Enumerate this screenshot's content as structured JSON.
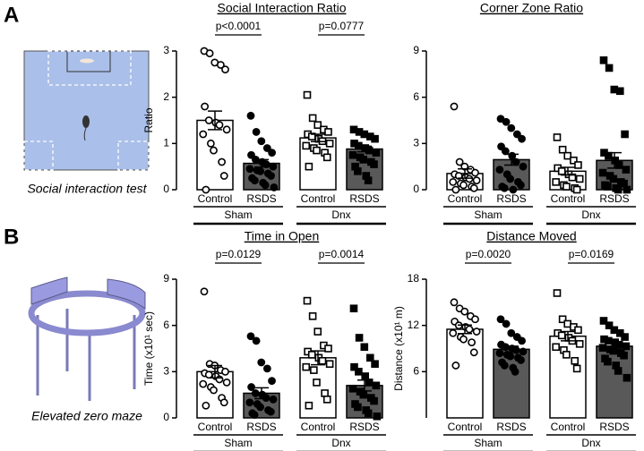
{
  "figure": {
    "panels": [
      "A",
      "B"
    ],
    "captions": [
      "Social interaction test",
      "Elevated zero maze"
    ]
  },
  "chart_data": [
    {
      "type": "bar",
      "title": "Social Interaction Ratio",
      "ylabel": "Ratio",
      "categories": [
        "Control",
        "RSDS",
        "Control",
        "RSDS"
      ],
      "groups": [
        "Sham",
        "Dnx"
      ],
      "values": [
        1.5,
        0.57,
        1.12,
        0.88
      ],
      "errors": [
        0.2,
        0.08,
        0.08,
        0.06
      ],
      "points": [
        [
          3.0,
          2.95,
          2.75,
          2.7,
          2.6,
          1.8,
          1.5,
          1.45,
          1.4,
          1.3,
          1.2,
          1.0,
          0.85,
          0.6,
          0.3,
          0.0
        ],
        [
          1.6,
          1.25,
          1.05,
          0.9,
          0.8,
          0.75,
          0.65,
          0.6,
          0.55,
          0.5,
          0.45,
          0.42,
          0.4,
          0.35,
          0.3,
          0.25,
          0.2,
          0.15,
          0.1,
          0.05
        ],
        [
          2.05,
          1.55,
          1.4,
          1.3,
          1.25,
          1.2,
          1.15,
          1.1,
          1.05,
          1.0,
          0.95,
          0.9,
          0.85,
          0.8,
          0.7,
          0.5
        ],
        [
          1.3,
          1.25,
          1.2,
          1.15,
          1.1,
          1.0,
          0.95,
          0.9,
          0.85,
          0.8,
          0.75,
          0.7,
          0.65,
          0.6,
          0.55,
          0.5,
          0.4,
          0.3,
          0.2
        ]
      ],
      "markers": [
        "circle",
        "circle",
        "square",
        "square"
      ],
      "colors": [
        "#ffffff",
        "#595959",
        "#ffffff",
        "#595959"
      ],
      "point_colors": [
        "#ffffff",
        "#000000",
        "#ffffff",
        "#000000"
      ],
      "annotations": [
        {
          "text": "p<0.0001",
          "color": "#c00000"
        },
        {
          "text": "p=0.0777",
          "color": "#000000"
        }
      ],
      "ylim": [
        0,
        3
      ],
      "yticks": [
        0,
        1,
        2,
        3
      ]
    },
    {
      "type": "bar",
      "title": "Corner Zone Ratio",
      "categories": [
        "Control",
        "RSDS",
        "Control",
        "RSDS"
      ],
      "groups": [
        "Sham",
        "Dnx"
      ],
      "values": [
        1.05,
        1.95,
        1.2,
        1.9
      ],
      "errors": [
        0.3,
        0.35,
        0.25,
        0.5
      ],
      "points": [
        [
          5.4,
          1.8,
          1.5,
          1.3,
          1.1,
          1.0,
          0.9,
          0.8,
          0.7,
          0.6,
          0.5,
          0.4,
          0.3,
          0.2,
          0.1,
          0.0
        ],
        [
          4.6,
          4.4,
          4.0,
          3.6,
          3.3,
          2.8,
          2.5,
          2.2,
          1.8,
          1.5,
          1.3,
          1.0,
          0.7,
          0.5,
          0.3,
          0.2,
          0.1,
          0.0
        ],
        [
          3.4,
          2.6,
          2.2,
          1.9,
          1.6,
          1.4,
          1.2,
          1.0,
          0.8,
          0.7,
          0.5,
          0.3,
          0.2,
          0.1,
          0.0
        ],
        [
          8.4,
          7.9,
          6.5,
          6.4,
          3.6,
          2.4,
          2.2,
          1.9,
          1.6,
          1.3,
          1.1,
          0.9,
          0.7,
          0.5,
          0.4,
          0.3,
          0.2,
          0.1,
          0.0,
          0.0
        ]
      ],
      "markers": [
        "circle",
        "circle",
        "square",
        "square"
      ],
      "colors": [
        "#ffffff",
        "#595959",
        "#ffffff",
        "#595959"
      ],
      "point_colors": [
        "#ffffff",
        "#000000",
        "#ffffff",
        "#000000"
      ],
      "ylim": [
        0,
        9
      ],
      "yticks": [
        0,
        3,
        6,
        9
      ]
    },
    {
      "type": "bar",
      "title": "Time in Open",
      "ylabel": "Time (x10¹ sec)",
      "categories": [
        "Control",
        "RSDS",
        "Control",
        "RSDS"
      ],
      "groups": [
        "Sham",
        "Dnx"
      ],
      "values": [
        3.0,
        1.6,
        3.9,
        2.1
      ],
      "errors": [
        0.4,
        0.35,
        0.45,
        0.35
      ],
      "points": [
        [
          8.2,
          3.5,
          3.4,
          3.1,
          3.0,
          2.9,
          2.8,
          2.7,
          2.5,
          2.3,
          2.2,
          2.0,
          1.8,
          1.3,
          1.0,
          0.8
        ],
        [
          5.3,
          5.0,
          3.6,
          3.2,
          2.4,
          2.0,
          1.6,
          1.5,
          1.3,
          1.2,
          1.0,
          0.9,
          0.7,
          0.5,
          0.4,
          0.3,
          0.2
        ],
        [
          7.6,
          6.6,
          5.6,
          4.7,
          4.5,
          4.3,
          4.1,
          3.9,
          3.7,
          3.5,
          3.3,
          3.1,
          2.3,
          1.6,
          1.2,
          0.8
        ],
        [
          7.1,
          5.2,
          4.6,
          3.9,
          3.5,
          3.3,
          3.0,
          2.7,
          2.3,
          2.1,
          1.9,
          1.7,
          1.5,
          1.3,
          1.1,
          0.9,
          0.7,
          0.5,
          0.3,
          0.1
        ]
      ],
      "markers": [
        "circle",
        "circle",
        "square",
        "square"
      ],
      "colors": [
        "#ffffff",
        "#595959",
        "#ffffff",
        "#595959"
      ],
      "point_colors": [
        "#ffffff",
        "#000000",
        "#ffffff",
        "#000000"
      ],
      "annotations": [
        {
          "text": "p=0.0129",
          "color": "#c00000"
        },
        {
          "text": "p=0.0014",
          "color": "#c00000"
        }
      ],
      "ylim": [
        0,
        9
      ],
      "yticks": [
        0,
        3,
        6,
        9
      ]
    },
    {
      "type": "bar",
      "title": "Distance Moved",
      "ylabel": "Distance (x10¹ m)",
      "categories": [
        "Control",
        "RSDS",
        "Control",
        "RSDS"
      ],
      "groups": [
        "Sham",
        "Dnx"
      ],
      "values": [
        11.5,
        8.9,
        10.6,
        9.3
      ],
      "errors": [
        0.55,
        0.4,
        0.6,
        0.4
      ],
      "points": [
        [
          15.0,
          14.2,
          13.8,
          13.2,
          12.8,
          12.5,
          12.0,
          11.8,
          11.5,
          11.2,
          11.0,
          10.5,
          10.2,
          9.8,
          8.5,
          6.8
        ],
        [
          12.8,
          12.2,
          11.0,
          10.5,
          10.0,
          9.5,
          9.2,
          9.0,
          8.8,
          8.6,
          8.4,
          8.2,
          8.0,
          7.8,
          7.5,
          7.2,
          6.8,
          6.5,
          6.0
        ],
        [
          16.2,
          12.8,
          12.2,
          11.8,
          11.4,
          11.0,
          10.7,
          10.4,
          10.0,
          9.6,
          9.2,
          8.8,
          8.2,
          7.4,
          6.4
        ],
        [
          12.6,
          12.0,
          11.4,
          11.0,
          10.5,
          10.2,
          10.0,
          9.8,
          9.5,
          9.3,
          9.1,
          8.9,
          8.7,
          8.4,
          8.1,
          7.7,
          7.3,
          6.8,
          6.1,
          5.2
        ]
      ],
      "markers": [
        "circle",
        "circle",
        "square",
        "square"
      ],
      "colors": [
        "#ffffff",
        "#595959",
        "#ffffff",
        "#595959"
      ],
      "point_colors": [
        "#ffffff",
        "#000000",
        "#ffffff",
        "#000000"
      ],
      "annotations": [
        {
          "text": "p=0.0020",
          "color": "#c00000"
        },
        {
          "text": "p=0.0169",
          "color": "#c00000"
        }
      ],
      "ylim": [
        0,
        18
      ],
      "yticks": [
        6,
        12,
        18
      ]
    }
  ]
}
